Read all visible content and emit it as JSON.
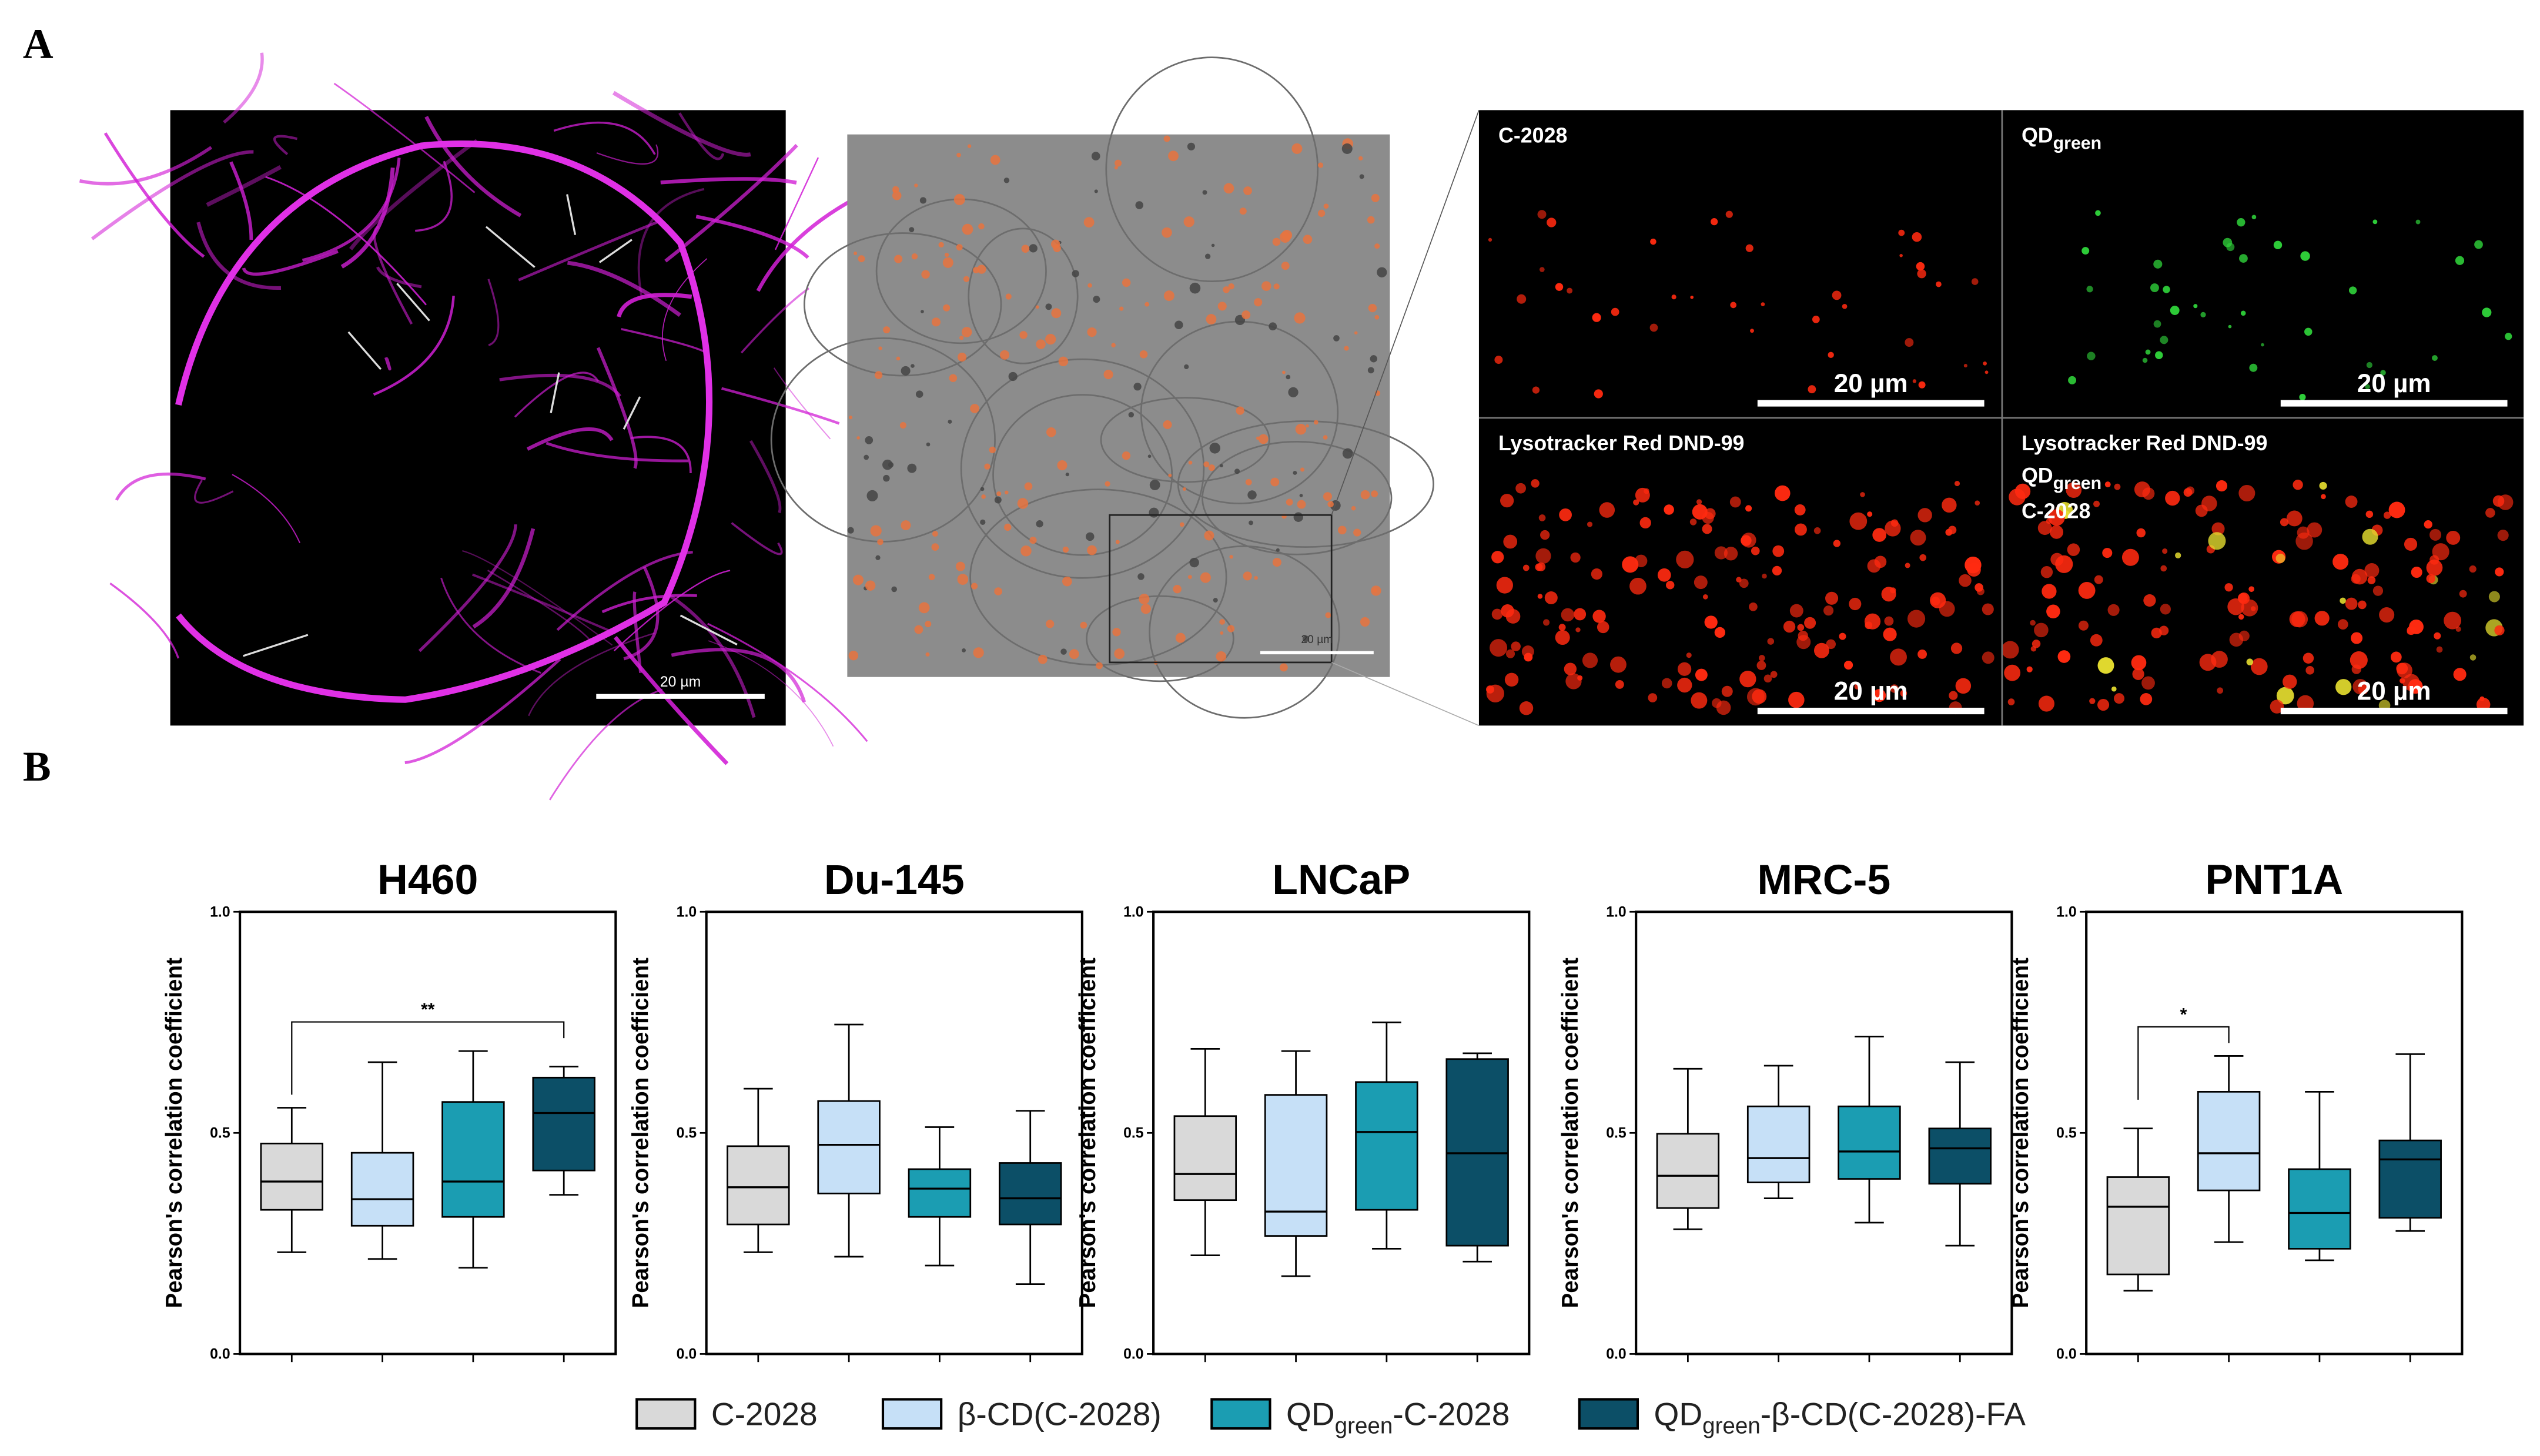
{
  "panel_labels": [
    "A",
    "B"
  ],
  "panel_a": {
    "scale_bars": [
      "20 µm",
      "20 µm",
      "20 µm",
      "20 µm",
      "20 µm",
      "20 µm"
    ],
    "channels": [
      {
        "text": "C-2028"
      },
      {
        "text": "QD",
        "sub": "green"
      },
      {
        "text": "Lysotracker Red DND-99"
      },
      {
        "text": "Lysotracker Red DND-99",
        "line2": "QD",
        "sub": "green",
        "line3": "C-2028"
      }
    ]
  },
  "legend": [
    {
      "name": "C-2028",
      "color": "#d9d9d9"
    },
    {
      "name": "β-CD(C-2028)",
      "color": "#c6e0f7"
    },
    {
      "name": "QD",
      "sub": "green",
      "rest": "-C-2028",
      "color": "#1b9db2"
    },
    {
      "name": "QD",
      "sub": "green",
      "rest": "-β-CD(C-2028)-FA",
      "color": "#0c4f67"
    }
  ],
  "chart_data": [
    {
      "type": "box",
      "title": "H460",
      "ylabel": "Pearson's correlation coefficient",
      "ylim": [
        0,
        1
      ],
      "yticks": [
        {
          "value": 0,
          "label": "0.0"
        },
        {
          "value": 0.5,
          "label": "0.5"
        },
        {
          "value": 1,
          "label": "1.0"
        }
      ],
      "boxes": [
        [
          0.23,
          0.326,
          0.39,
          0.476,
          0.557
        ],
        [
          0.215,
          0.29,
          0.35,
          0.455,
          0.66
        ],
        [
          0.195,
          0.31,
          0.39,
          0.57,
          0.685
        ],
        [
          0.36,
          0.415,
          0.545,
          0.625,
          0.65
        ]
      ],
      "annotations": [
        {
          "text": "**",
          "between": [
            0,
            3
          ]
        }
      ]
    },
    {
      "type": "box",
      "title": "Du-145",
      "ylabel": "Pearson's correlation coefficient",
      "ylim": [
        0,
        1
      ],
      "yticks": [
        {
          "value": 0,
          "label": "0.0"
        },
        {
          "value": 0.5,
          "label": "0.5"
        },
        {
          "value": 1,
          "label": "1.0"
        }
      ],
      "boxes": [
        [
          0.23,
          0.293,
          0.377,
          0.47,
          0.6
        ],
        [
          0.22,
          0.363,
          0.473,
          0.572,
          0.745
        ],
        [
          0.2,
          0.31,
          0.374,
          0.418,
          0.513
        ],
        [
          0.158,
          0.293,
          0.352,
          0.432,
          0.55
        ]
      ]
    },
    {
      "type": "box",
      "title": "LNCaP",
      "ylabel": "Pearson's correlation coefficient",
      "ylim": [
        0,
        1
      ],
      "yticks": [
        {
          "value": 0,
          "label": "0.0"
        },
        {
          "value": 0.5,
          "label": "0.5"
        },
        {
          "value": 1,
          "label": "1.0"
        }
      ],
      "boxes": [
        [
          0.223,
          0.348,
          0.407,
          0.538,
          0.69
        ],
        [
          0.176,
          0.267,
          0.322,
          0.586,
          0.685
        ],
        [
          0.238,
          0.326,
          0.502,
          0.615,
          0.75
        ],
        [
          0.209,
          0.245,
          0.454,
          0.667,
          0.68
        ]
      ]
    },
    {
      "type": "box",
      "title": "MRC-5",
      "ylabel": "Pearson's correlation coefficient",
      "ylim": [
        0,
        1
      ],
      "yticks": [
        {
          "value": 0,
          "label": "0.0"
        },
        {
          "value": 0.5,
          "label": "0.5"
        },
        {
          "value": 1,
          "label": "1.0"
        }
      ],
      "boxes": [
        [
          0.282,
          0.33,
          0.403,
          0.498,
          0.645
        ],
        [
          0.352,
          0.388,
          0.443,
          0.56,
          0.652
        ],
        [
          0.297,
          0.396,
          0.458,
          0.56,
          0.718
        ],
        [
          0.245,
          0.385,
          0.465,
          0.51,
          0.66
        ]
      ]
    },
    {
      "type": "box",
      "title": "PNT1A",
      "ylabel": "Pearson's correlation coefficient",
      "ylim": [
        0,
        1
      ],
      "yticks": [
        {
          "value": 0,
          "label": "0.0"
        },
        {
          "value": 0.5,
          "label": "0.5"
        },
        {
          "value": 1,
          "label": "1.0"
        }
      ],
      "boxes": [
        [
          0.143,
          0.18,
          0.333,
          0.4,
          0.51
        ],
        [
          0.253,
          0.37,
          0.454,
          0.593,
          0.674
        ],
        [
          0.212,
          0.238,
          0.319,
          0.418,
          0.593
        ],
        [
          0.278,
          0.308,
          0.44,
          0.483,
          0.678
        ]
      ],
      "annotations": [
        {
          "text": "*",
          "between": [
            0,
            1
          ]
        }
      ]
    }
  ]
}
